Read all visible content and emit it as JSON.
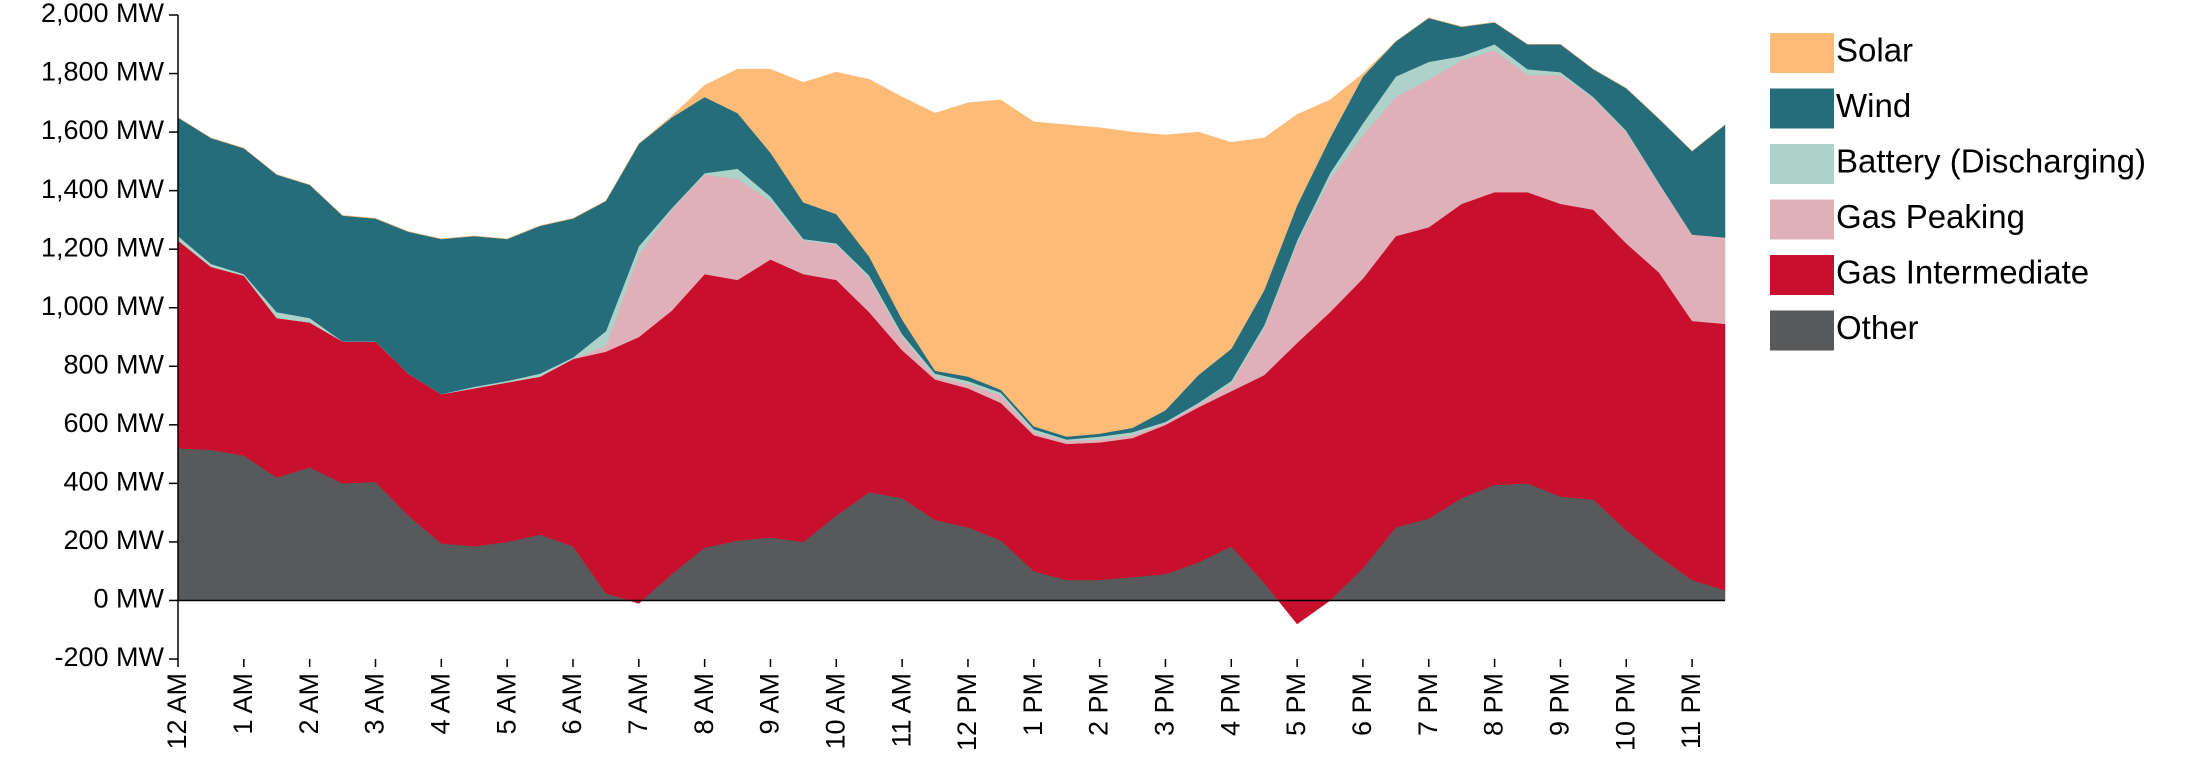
{
  "chart_data": {
    "type": "stacked_area",
    "categories": [
      "12 AM",
      null,
      "1 AM",
      null,
      "2 AM",
      null,
      "3 AM",
      null,
      "4 AM",
      null,
      "5 AM",
      null,
      "6 AM",
      null,
      "7 AM",
      null,
      "8 AM",
      null,
      "9 AM",
      null,
      "10 AM",
      null,
      "11 AM",
      null,
      "12 PM",
      null,
      "1 PM",
      null,
      "2 PM",
      null,
      "3 PM",
      null,
      "4 PM",
      null,
      "5 PM",
      null,
      "6 PM",
      null,
      "7 PM",
      null,
      "8 PM",
      null,
      "9 PM",
      null,
      "10 PM",
      null,
      "11 PM",
      null
    ],
    "series": [
      {
        "name": "Other",
        "color": "#58595b",
        "values": [
          520,
          515,
          495,
          420,
          455,
          400,
          405,
          290,
          195,
          185,
          200,
          225,
          185,
          25,
          -10,
          90,
          180,
          205,
          215,
          200,
          290,
          370,
          350,
          275,
          250,
          205,
          100,
          70,
          70,
          80,
          90,
          130,
          185,
          60,
          -80,
          0,
          110,
          250,
          280,
          350,
          395,
          400,
          355,
          345,
          240,
          150,
          70,
          35
        ]
      },
      {
        "name": "Gas Intermediate",
        "color": "#c8102e",
        "values": [
          710,
          625,
          615,
          545,
          495,
          485,
          480,
          485,
          510,
          540,
          545,
          540,
          640,
          825,
          910,
          900,
          935,
          890,
          950,
          915,
          805,
          615,
          505,
          480,
          475,
          470,
          465,
          465,
          470,
          475,
          510,
          530,
          530,
          710,
          960,
          985,
          990,
          995,
          995,
          1005,
          1000,
          995,
          1000,
          990,
          980,
          970,
          885,
          910
        ]
      },
      {
        "name": "Gas Peaking",
        "color": "#e0b0b8",
        "values": [
          0,
          0,
          0,
          0,
          0,
          0,
          0,
          0,
          0,
          0,
          0,
          0,
          0,
          20,
          280,
          345,
          340,
          345,
          200,
          115,
          120,
          115,
          45,
          10,
          15,
          25,
          10,
          10,
          10,
          10,
          5,
          10,
          25,
          160,
          340,
          455,
          490,
          475,
          505,
          490,
          485,
          400,
          440,
          380,
          380,
          300,
          295,
          295
        ]
      },
      {
        "name": "Battery (Discharging)",
        "color": "#acd2ca",
        "values": [
          15,
          10,
          5,
          20,
          15,
          0,
          0,
          0,
          0,
          5,
          5,
          10,
          5,
          50,
          30,
          5,
          5,
          35,
          15,
          5,
          5,
          10,
          10,
          10,
          10,
          10,
          10,
          5,
          10,
          10,
          5,
          5,
          10,
          10,
          10,
          20,
          40,
          70,
          60,
          15,
          20,
          20,
          10,
          5,
          5,
          5,
          0,
          0
        ]
      },
      {
        "name": "Wind",
        "color": "#256d7b",
        "values": [
          405,
          430,
          430,
          470,
          455,
          430,
          420,
          485,
          530,
          515,
          485,
          505,
          475,
          445,
          350,
          310,
          260,
          190,
          150,
          125,
          100,
          65,
          50,
          10,
          15,
          10,
          10,
          10,
          10,
          15,
          40,
          95,
          110,
          120,
          120,
          120,
          160,
          120,
          150,
          100,
          75,
          85,
          95,
          95,
          145,
          220,
          285,
          385
        ]
      },
      {
        "name": "Solar",
        "color": "#fdbb78",
        "values": [
          0,
          0,
          0,
          0,
          0,
          0,
          0,
          0,
          0,
          0,
          0,
          0,
          0,
          0,
          0,
          5,
          40,
          150,
          285,
          410,
          485,
          605,
          760,
          880,
          935,
          990,
          1040,
          1065,
          1045,
          1010,
          940,
          830,
          705,
          520,
          310,
          130,
          10,
          0,
          0,
          0,
          0,
          0,
          0,
          0,
          0,
          0,
          0,
          0
        ]
      }
    ],
    "ylim": [
      -200,
      2000
    ],
    "yticks": [
      {
        "value": -200,
        "label": "-200 MW"
      },
      {
        "value": 0,
        "label": "0 MW"
      },
      {
        "value": 200,
        "label": "200 MW"
      },
      {
        "value": 400,
        "label": "400 MW"
      },
      {
        "value": 600,
        "label": "600 MW"
      },
      {
        "value": 800,
        "label": "800 MW"
      },
      {
        "value": 1000,
        "label": "1,000 MW"
      },
      {
        "value": 1200,
        "label": "1,200 MW"
      },
      {
        "value": 1400,
        "label": "1,400 MW"
      },
      {
        "value": 1600,
        "label": "1,600 MW"
      },
      {
        "value": 1800,
        "label": "1,800 MW"
      },
      {
        "value": 2000,
        "label": "2,000 MW"
      }
    ],
    "grid": false,
    "legend": "right"
  }
}
